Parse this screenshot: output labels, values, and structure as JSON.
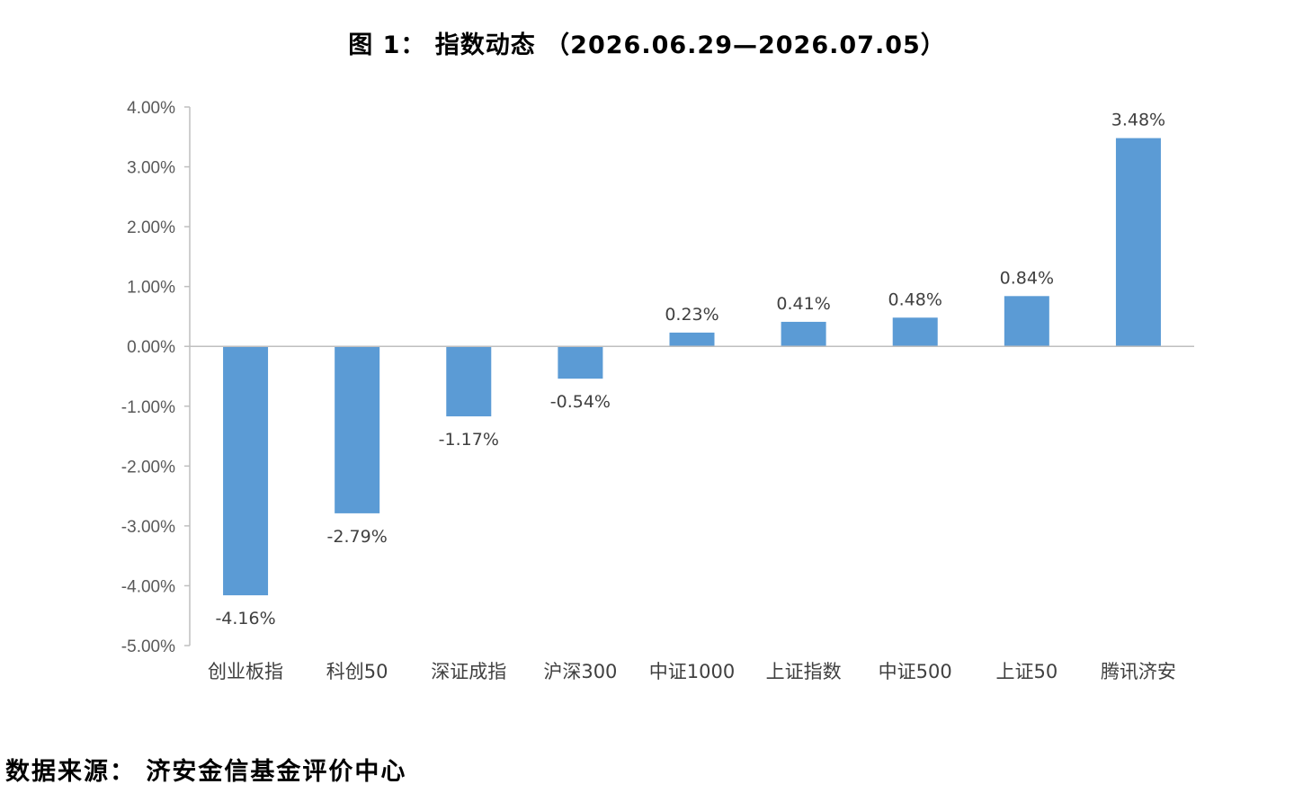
{
  "title": "图 1： 指数动态 （2026.06.29—2026.07.05）",
  "source": "数据来源： 济安金信基金评价中心",
  "chart_data": {
    "type": "bar",
    "title": "图 1： 指数动态 （2026.06.29—2026.07.05）",
    "categories": [
      "创业板指",
      "科创50",
      "深证成指",
      "沪深300",
      "中证1000",
      "上证指数",
      "中证500",
      "上证50",
      "腾讯济安"
    ],
    "values": [
      -4.16,
      -2.79,
      -1.17,
      -0.54,
      0.23,
      0.41,
      0.48,
      0.84,
      3.48
    ],
    "data_labels": [
      "-4.16%",
      "-2.79%",
      "-1.17%",
      "-0.54%",
      "0.23%",
      "0.41%",
      "0.48%",
      "0.84%",
      "3.48%"
    ],
    "yticks": [
      4,
      3,
      2,
      1,
      0,
      -1,
      -2,
      -3,
      -4,
      -5
    ],
    "ytick_labels": [
      "4.00%",
      "3.00%",
      "2.00%",
      "1.00%",
      "0.00%",
      "-1.00%",
      "-2.00%",
      "-3.00%",
      "-4.00%",
      "-5.00%"
    ],
    "ylim": [
      -5,
      4
    ],
    "xlabel": "",
    "ylabel": "",
    "grid": false,
    "bar_color": "#5b9bd5"
  }
}
